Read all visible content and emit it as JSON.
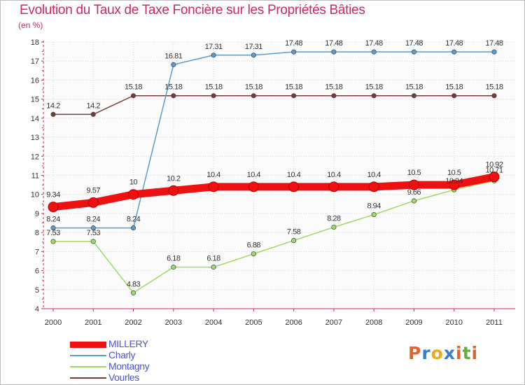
{
  "title": "Evolution du Taux de Taxe Foncière sur les Propriétés Bâties",
  "unit_label": "(en %)",
  "logo_text": "Proxiti",
  "logo_colors": [
    "#e8612c",
    "#3a7fc4",
    "#f0a81b",
    "#3a7fc4",
    "#e8612c",
    "#5fb03a",
    "#e8612c"
  ],
  "chart_data": {
    "type": "line",
    "title": "Evolution du Taux de Taxe Foncière sur les Propriétés Bâties",
    "ylabel": "(en %)",
    "xlabel": "",
    "ylim": [
      4,
      18
    ],
    "yticks": [
      4,
      5,
      6,
      7,
      8,
      9,
      10,
      11,
      12,
      13,
      14,
      15,
      16,
      17,
      18
    ],
    "categories": [
      "2000",
      "2001",
      "2002",
      "2003",
      "2004",
      "2005",
      "2006",
      "2007",
      "2008",
      "2009",
      "2010",
      "2011"
    ],
    "grid": true,
    "legend_position": "bottom-left",
    "series": [
      {
        "name": "MILLERY",
        "color": "#ee1111",
        "values": [
          9.34,
          9.57,
          10,
          10.2,
          10.4,
          10.4,
          10.4,
          10.4,
          10.4,
          10.5,
          10.5,
          10.92
        ],
        "labels": [
          "9.34",
          "9.57",
          "10",
          "10.2",
          "10.4",
          "10.4",
          "10.4",
          "10.4",
          "10.4",
          "10.5",
          "10.5",
          "10.92"
        ]
      },
      {
        "name": "Charly",
        "color": "#5a9bd0",
        "values": [
          8.24,
          8.24,
          8.24,
          16.81,
          17.31,
          17.31,
          17.48,
          17.48,
          17.48,
          17.48,
          17.48,
          17.48
        ],
        "labels": [
          "8.24",
          "8.24",
          "8.24",
          "16.81",
          "17.31",
          "17.31",
          "17.48",
          "17.48",
          "17.48",
          "17.48",
          "17.48",
          "17.48"
        ]
      },
      {
        "name": "Montagny",
        "color": "#99dd66",
        "values": [
          7.53,
          7.53,
          4.83,
          6.18,
          6.18,
          6.88,
          7.58,
          8.28,
          8.94,
          9.66,
          10.24,
          10.71
        ],
        "labels": [
          "7.53",
          "7.53",
          "4.83",
          "6.18",
          "6.18",
          "6.88",
          "7.58",
          "8.28",
          "8.94",
          "9.66",
          "10.24",
          "10.71"
        ]
      },
      {
        "name": "Vourles",
        "color": "#7a3a3a",
        "values": [
          14.2,
          14.2,
          15.18,
          15.18,
          15.18,
          15.18,
          15.18,
          15.18,
          15.18,
          15.18,
          15.18,
          15.18
        ],
        "labels": [
          "14.2",
          "14.2",
          "15.18",
          "15.18",
          "15.18",
          "15.18",
          "15.18",
          "15.18",
          "15.18",
          "15.18",
          "15.18",
          "15.18"
        ]
      }
    ]
  }
}
